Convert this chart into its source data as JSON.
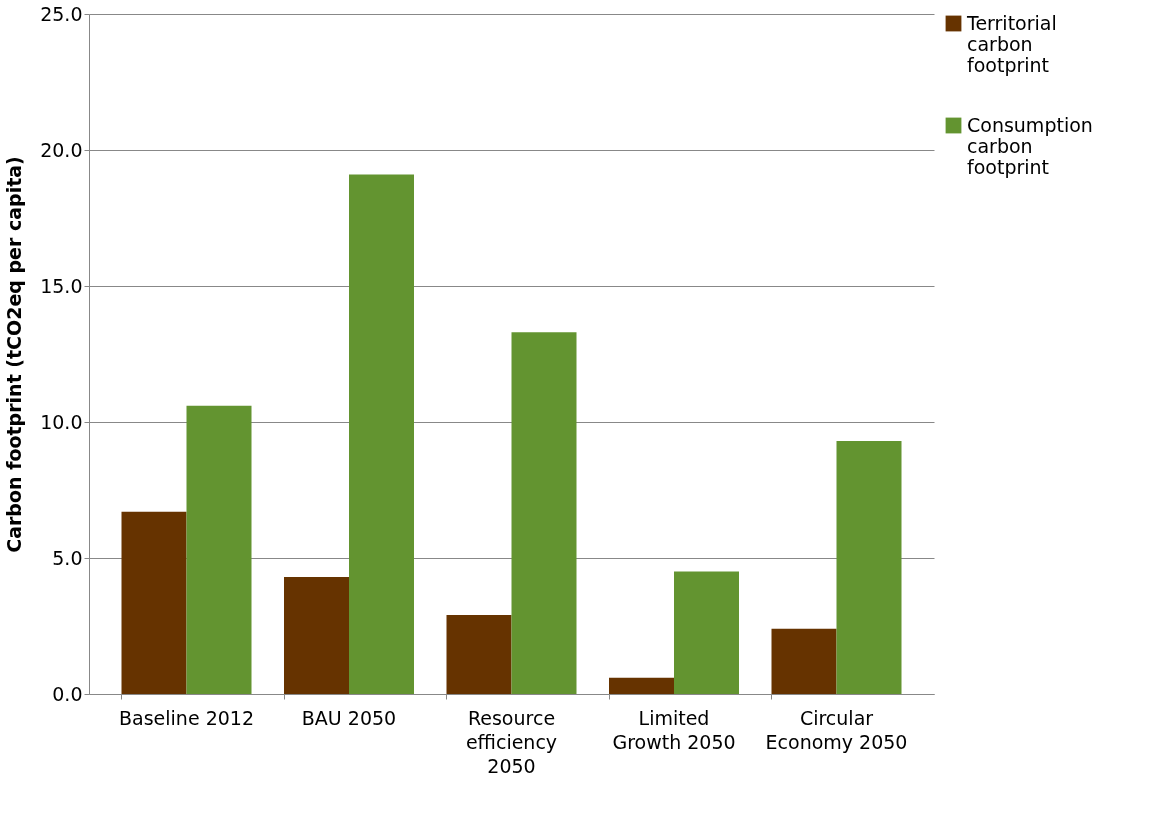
{
  "chart_data": {
    "type": "bar",
    "ylabel": "Carbon footprint (tCO2eq per capita)",
    "categories": [
      "Baseline 2012",
      "BAU 2050",
      "Resource efficiency 2050",
      "Limited Growth 2050",
      "Circular Economy 2050"
    ],
    "series": [
      {
        "name": "Territorial carbon footprint",
        "color": "#663300",
        "values": [
          6.7,
          4.3,
          2.9,
          0.6,
          2.4
        ]
      },
      {
        "name": "Consumption carbon footprint",
        "color": "#639430",
        "values": [
          10.6,
          19.1,
          13.3,
          4.5,
          9.3
        ]
      }
    ],
    "ylim": [
      0,
      25
    ],
    "yticks": [
      {
        "value": 0,
        "label": "0.0"
      },
      {
        "value": 5,
        "label": "5.0"
      },
      {
        "value": 10,
        "label": "10.0"
      },
      {
        "value": 15,
        "label": "15.0"
      },
      {
        "value": 20,
        "label": "20.0"
      },
      {
        "value": 25,
        "label": "25.0"
      }
    ],
    "grid": "y",
    "legend": "right"
  }
}
